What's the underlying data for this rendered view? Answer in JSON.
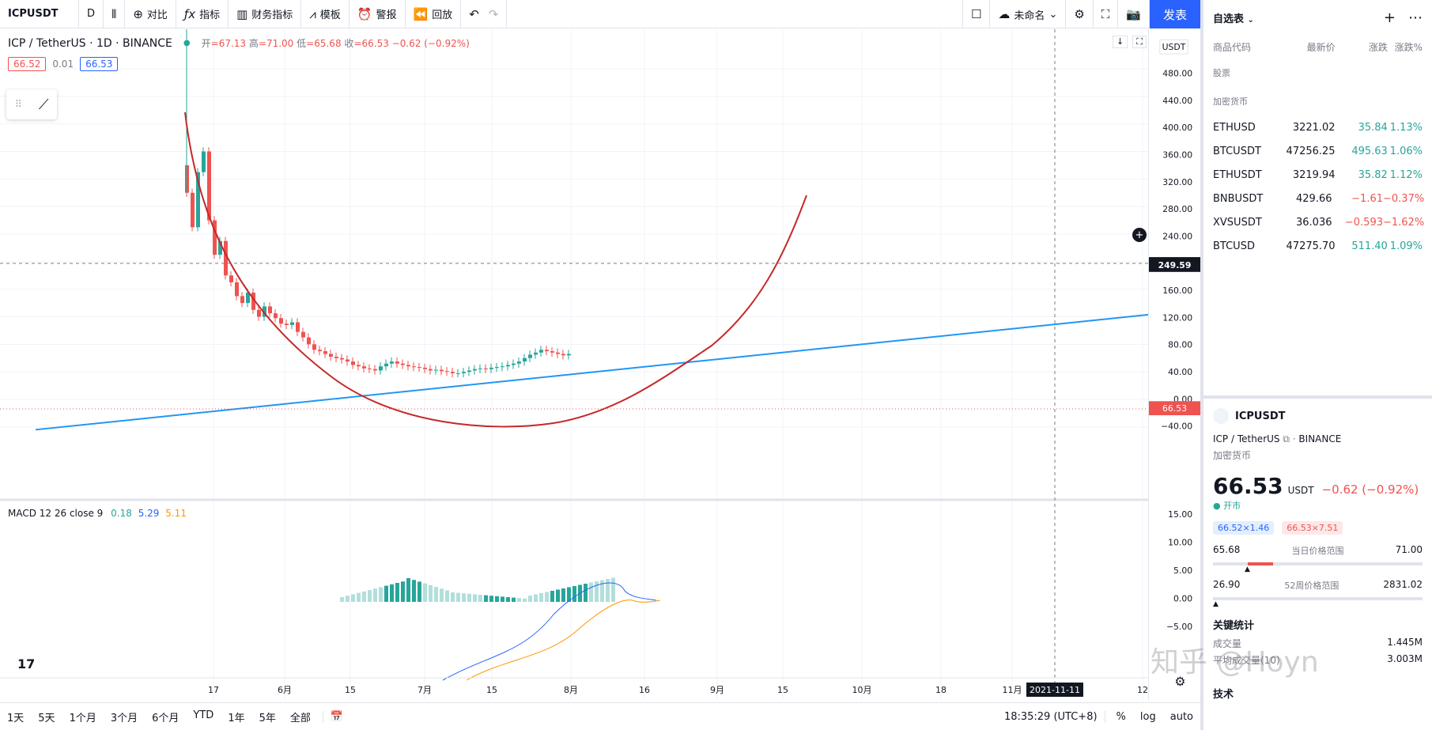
{
  "toolbar": {
    "symbol": "ICPUSDT",
    "interval": "D",
    "compare": "对比",
    "indicators": "指标",
    "financials": "财务指标",
    "templates": "模板",
    "alert": "警报",
    "replay": "回放",
    "layout_name": "未命名",
    "publish": "发表"
  },
  "legend": {
    "title": "ICP / TetherUS · 1D · BINANCE",
    "open_label": "开",
    "open": "=67.13",
    "high_label": "高",
    "high": "=71.00",
    "low_label": "低",
    "low": "=65.68",
    "close_label": "收",
    "close": "=66.53",
    "change": "−0.62 (−0.92%)",
    "bid": "66.52",
    "spread": "0.01",
    "ask": "66.53"
  },
  "macd": {
    "label": "MACD 12 26 close 9",
    "v1": "0.18",
    "v2": "5.29",
    "v3": "5.11"
  },
  "price_axis": {
    "currency": "USDT",
    "ticks": [
      "480.00",
      "440.00",
      "400.00",
      "360.00",
      "320.00",
      "280.00",
      "240.00",
      "200.00",
      "160.00",
      "120.00",
      "80.00",
      "40.00",
      "0.00",
      "−40.00"
    ],
    "crosshair_price": "249.59",
    "last_price": "66.53",
    "macd_ticks": [
      "15.00",
      "10.00",
      "5.00",
      "0.00",
      "−5.00"
    ]
  },
  "time_axis": {
    "labels": [
      "17",
      "6月",
      "15",
      "7月",
      "15",
      "8月",
      "16",
      "9月",
      "15",
      "10月",
      "18",
      "11月",
      "12"
    ],
    "crosshair_date": "2021-11-11"
  },
  "bottombar": {
    "ranges": [
      "1天",
      "5天",
      "1个月",
      "3个月",
      "6个月",
      "YTD",
      "1年",
      "5年",
      "全部"
    ],
    "time": "18:35:29 (UTC+8)",
    "percent": "%",
    "log": "log",
    "auto": "auto"
  },
  "watchlist": {
    "title": "自选表",
    "col_symbol": "商品代码",
    "col_last": "最新价",
    "col_chg": "涨跌",
    "col_pct": "涨跌%",
    "section_stocks": "股票",
    "section_crypto": "加密货币",
    "rows": [
      {
        "sym": "ETHUSD",
        "last": "3221.02",
        "chg": "35.84",
        "pct": "1.13%",
        "dir": "up"
      },
      {
        "sym": "BTCUSDT",
        "last": "47256.25",
        "chg": "495.63",
        "pct": "1.06%",
        "dir": "up"
      },
      {
        "sym": "ETHUSDT",
        "last": "3219.94",
        "chg": "35.82",
        "pct": "1.12%",
        "dir": "up"
      },
      {
        "sym": "BNBUSDT",
        "last": "429.66",
        "chg": "−1.61",
        "pct": "−0.37%",
        "dir": "down"
      },
      {
        "sym": "XVSUSDT",
        "last": "36.036",
        "chg": "−0.593",
        "pct": "−1.62%",
        "dir": "down"
      },
      {
        "sym": "BTCUSD",
        "last": "47275.70",
        "chg": "511.40",
        "pct": "1.09%",
        "dir": "up"
      }
    ]
  },
  "detail": {
    "symbol": "ICPUSDT",
    "name": "ICP / TetherUS",
    "exchange": "BINANCE",
    "type": "加密货币",
    "price": "66.53",
    "currency": "USDT",
    "change": "−0.62 (−0.92%)",
    "status": "开市",
    "bid_box": "66.52×1.46",
    "ask_box": "66.53×7.51",
    "day_low": "65.68",
    "day_range_label": "当日价格范围",
    "day_high": "71.00",
    "wk_low": "26.90",
    "wk_range_label": "52周价格范围",
    "wk_high": "2831.02",
    "key_stats": "关键统计",
    "volume_label": "成交量",
    "volume": "1.445M",
    "avg_vol_label": "平均成交量(10)",
    "avg_vol": "3.003M",
    "tech": "技术"
  },
  "watermark": "知乎 @Hoyn",
  "colors": {
    "up": "#26a69a",
    "down": "#ef5350",
    "accent": "#2962ff",
    "curve": "#c62828",
    "trendline": "#2196f3"
  }
}
